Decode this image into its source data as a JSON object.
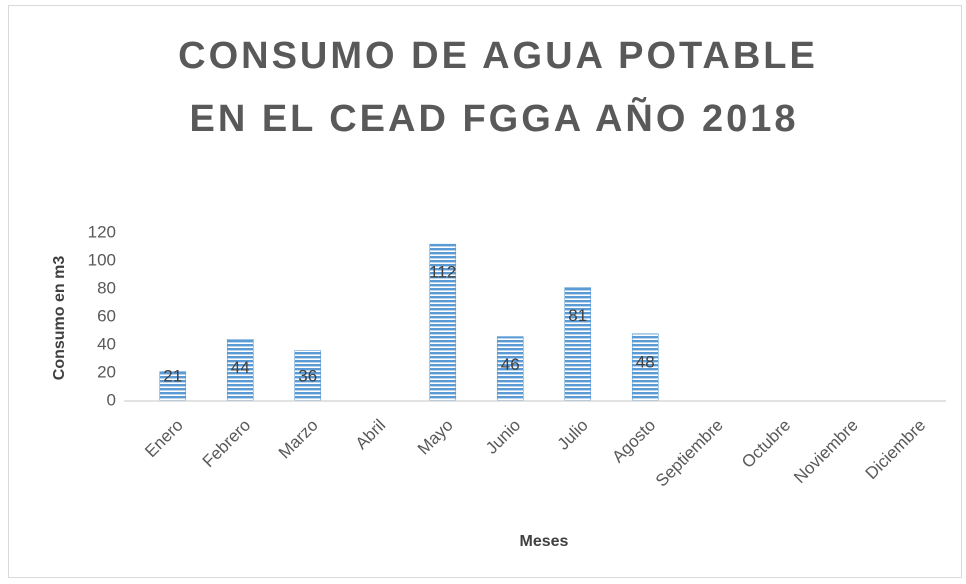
{
  "chart_data": {
    "type": "bar",
    "title": [
      "CONSUMO DE AGUA POTABLE",
      "EN EL CEAD FGGA AÑO 2018"
    ],
    "x_label": "Meses",
    "y_label": "Consumo en m3",
    "categories": [
      "Enero",
      "Febrero",
      "Marzo",
      "Abril",
      "Mayo",
      "Junio",
      "Julio",
      "Agosto",
      "Septiembre",
      "Octubre",
      "Noviembre",
      "Diciembre"
    ],
    "values": [
      21,
      44,
      36,
      null,
      112,
      46,
      81,
      48,
      null,
      null,
      null,
      null
    ],
    "color": "#5b9bd5",
    "ylim": [
      0,
      120
    ],
    "yticks": [
      0,
      20,
      40,
      60,
      80,
      100,
      120
    ],
    "grid": false
  }
}
